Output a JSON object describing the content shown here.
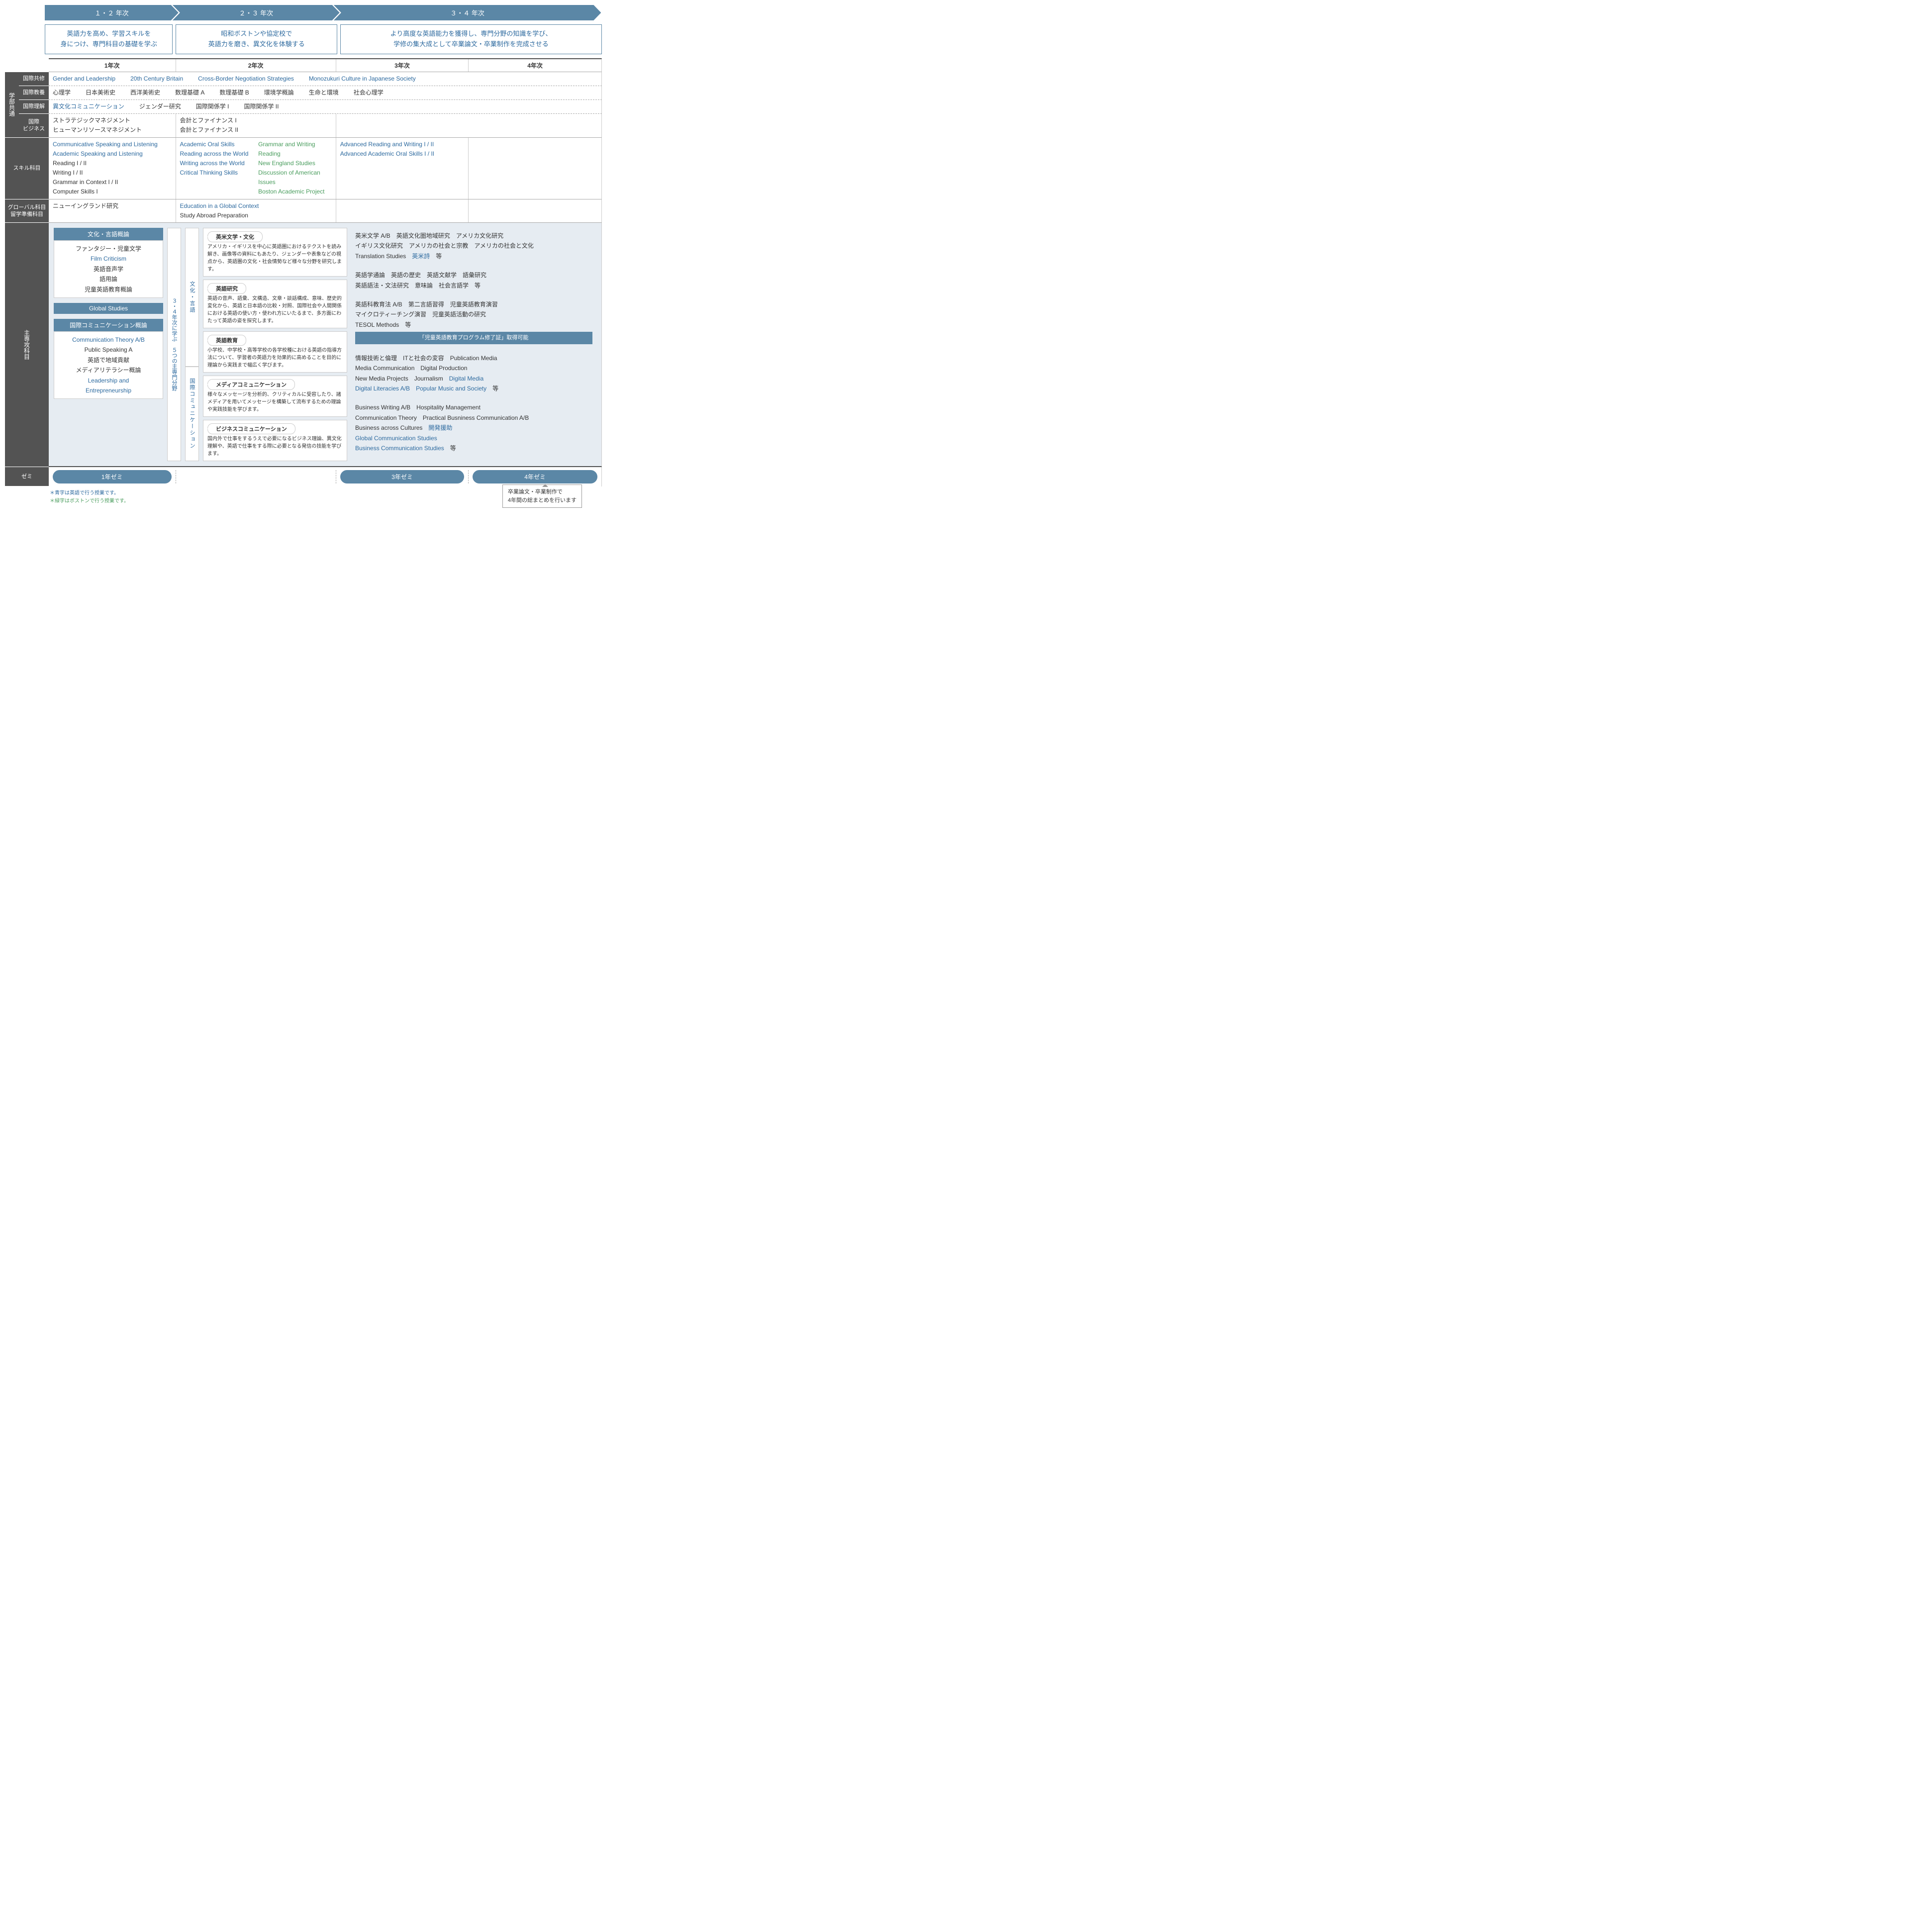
{
  "colors": {
    "header_bg": "#5b87a6",
    "side_bg": "#535353",
    "blue_text": "#2d6a9f",
    "green_text": "#4a9d5e",
    "panel_bg": "#e6ecf2"
  },
  "chevrons": [
    "１・２ 年次",
    "２・３ 年次",
    "３・４ 年次"
  ],
  "descriptions": [
    "英語力を高め、学習スキルを\n身につけ、専門科目の基礎を学ぶ",
    "昭和ボストンや協定校で\n英語力を磨き、異文化を体験する",
    "より高度な英語能力を獲得し、専門分野の知識を学び、\n学修の集大成として卒業論文・卒業制作を完成させる"
  ],
  "years": [
    "1年次",
    "2年次",
    "3年次",
    "4年次"
  ],
  "side_groups": {
    "gakubu": "学部共通",
    "skill": "スキル科目",
    "global": "グローバル科目\n留学準備科目",
    "major": "主専攻科目",
    "zemi": "ゼミ"
  },
  "sub_labels": {
    "kyoshu": "国際共修",
    "kyoyo": "国際教養",
    "rikai": "国際理解",
    "business": "国際\nビジネス"
  },
  "kyoshu_items": [
    "Gender and Leadership",
    "20th Century Britain",
    "Cross-Border Negotiation Strategies",
    "Monozukuri Culture in Japanese Society"
  ],
  "kyoyo_items": [
    "心理学",
    "日本美術史",
    "西洋美術史",
    "数理基礎 A",
    "数理基礎 B",
    "環境学概論",
    "生命と環境",
    "社会心理学"
  ],
  "rikai_items": {
    "blue": "異文化コミュニケーション",
    "rest": [
      "ジェンダー研究",
      "国際関係学 I",
      "国際関係学 II"
    ]
  },
  "business": {
    "y1": [
      "ストラテジックマネジメント",
      "ヒューマンリソースマネジメント"
    ],
    "y2": [
      "会計とファイナンス I",
      "会計とファイナンス II"
    ]
  },
  "skill": {
    "y1": [
      {
        "t": "Communicative Speaking and Listening",
        "c": "blue"
      },
      {
        "t": "Academic Speaking and Listening",
        "c": "blue"
      },
      {
        "t": "Reading I / II",
        "c": "black"
      },
      {
        "t": "Writing I / II",
        "c": "black"
      },
      {
        "t": "Grammar in Context I / II",
        "c": "black"
      },
      {
        "t": "Computer Skills I",
        "c": "black"
      }
    ],
    "y2a": [
      {
        "t": "Academic Oral Skills",
        "c": "blue"
      },
      {
        "t": "Reading across the World",
        "c": "blue"
      },
      {
        "t": "Writing across the World",
        "c": "blue"
      },
      {
        "t": "Critical Thinking Skills",
        "c": "blue"
      }
    ],
    "y2b": [
      {
        "t": "Grammar and Writing",
        "c": "green"
      },
      {
        "t": "Reading",
        "c": "green"
      },
      {
        "t": "New England Studies",
        "c": "green"
      },
      {
        "t": "Discussion of American Issues",
        "c": "green"
      },
      {
        "t": "Boston Academic Project",
        "c": "green"
      }
    ],
    "y3": [
      {
        "t": "Advanced Reading and Writing I / II",
        "c": "blue"
      },
      {
        "t": "Advanced Academic Oral Skills I / II",
        "c": "blue"
      }
    ]
  },
  "global": {
    "y1": "ニューイングランド研究",
    "y2": [
      {
        "t": "Education in a Global Context",
        "c": "blue"
      },
      {
        "t": "Study Abroad Preparation",
        "c": "black"
      }
    ]
  },
  "major_left": {
    "box1": {
      "title": "文化・言語概論",
      "items": [
        {
          "t": "ファンタジー・児童文学",
          "c": "black"
        },
        {
          "t": "Film Criticism",
          "c": "blue"
        },
        {
          "t": "英語音声学",
          "c": "black"
        },
        {
          "t": "語用論",
          "c": "black"
        },
        {
          "t": "児童英語教育概論",
          "c": "black"
        }
      ]
    },
    "box2": {
      "title": "Global Studies",
      "items": []
    },
    "box3": {
      "title": "国際コミュニケーション概論",
      "items": [
        {
          "t": "Communication Theory A/B",
          "c": "blue"
        },
        {
          "t": "Public Speaking A",
          "c": "black"
        },
        {
          "t": "英語で地域貢献",
          "c": "black"
        },
        {
          "t": "メディアリテラシー概論",
          "c": "black"
        },
        {
          "t": "Leadership and",
          "c": "blue"
        },
        {
          "t": "Entrepreneurship",
          "c": "blue"
        }
      ]
    }
  },
  "vert_outer": "３・４年次に学ぶ　５つの主専門分野",
  "vert_inner": {
    "top": "文化・言語",
    "bot": "国際コミュニケーション"
  },
  "fields": [
    {
      "title": "英米文学・文化",
      "desc": "アメリカ・イギリスを中心に英語圏におけるテクストを読み解き、画像等の資料にもあたり、ジェンダーや表象などの視点から、英語圏の文化・社会情勢など様々な分野を研究します。"
    },
    {
      "title": "英語研究",
      "desc": "英語の音声、語彙、文構造、文章・談話構成、意味、歴史的変化から、英語と日本語の比較・対照、国際社会や人間関係における英語の使い方・使われ方にいたるまで、多方面にわたって英語の姿を探究します。"
    },
    {
      "title": "英語教育",
      "desc": "小学校、中学校・高等学校の各学校種における英語の指導方法について、学習者の英語力を効果的に高めることを目的に理論から実践まで幅広く学びます。"
    },
    {
      "title": "メディアコミュニケーション",
      "desc": "様々なメッセージを分析的、クリティカルに受容したり、諸メディアを用いてメッセージを構築して流布するための理論や実践技能を学びます。"
    },
    {
      "title": "ビジネスコミュニケーション",
      "desc": "国内外で仕事をするうえで必要になるビジネス理論、異文化理解や、英語で仕事をする際に必要となる発信の技能を学びます。"
    }
  ],
  "courses": [
    {
      "lines": [
        [
          {
            "t": "英米文学 A/B",
            "c": "black"
          },
          {
            "t": "　英語文化圏地域研究",
            "c": "black"
          },
          {
            "t": "　アメリカ文化研究",
            "c": "black"
          }
        ],
        [
          {
            "t": "イギリス文化研究",
            "c": "black"
          },
          {
            "t": "　アメリカの社会と宗教",
            "c": "black"
          },
          {
            "t": "　アメリカの社会と文化",
            "c": "black"
          }
        ],
        [
          {
            "t": "Translation Studies",
            "c": "black"
          },
          {
            "t": "　英米詩",
            "c": "blue"
          },
          {
            "t": "　等",
            "c": "black"
          }
        ]
      ]
    },
    {
      "lines": [
        [
          {
            "t": "英語学通論",
            "c": "black"
          },
          {
            "t": "　英語の歴史",
            "c": "black"
          },
          {
            "t": "　英語文献学",
            "c": "black"
          },
          {
            "t": "　語彙研究",
            "c": "black"
          }
        ],
        [
          {
            "t": "英語語法・文法研究",
            "c": "black"
          },
          {
            "t": "　意味論",
            "c": "black"
          },
          {
            "t": "　社会言語学",
            "c": "black"
          },
          {
            "t": "　等",
            "c": "black"
          }
        ]
      ]
    },
    {
      "lines": [
        [
          {
            "t": "英語科教育法 A/B",
            "c": "black"
          },
          {
            "t": "　第二言語習得",
            "c": "black"
          },
          {
            "t": "　児童英語教育演習",
            "c": "black"
          }
        ],
        [
          {
            "t": "マイクロティーチング演習",
            "c": "black"
          },
          {
            "t": "　児童英語活動の研究",
            "c": "black"
          }
        ],
        [
          {
            "t": "TESOL Methods",
            "c": "black"
          },
          {
            "t": "　等",
            "c": "black"
          }
        ]
      ],
      "badge": "「児童英語教育プログラム修了証」取得可能"
    },
    {
      "lines": [
        [
          {
            "t": "情報技術と倫理",
            "c": "black"
          },
          {
            "t": "　ITと社会の変容",
            "c": "black"
          },
          {
            "t": "　Publication Media",
            "c": "black"
          }
        ],
        [
          {
            "t": "Media Communication",
            "c": "black"
          },
          {
            "t": "　Digital Production",
            "c": "black"
          }
        ],
        [
          {
            "t": "New Media Projects",
            "c": "black"
          },
          {
            "t": "　Journalism",
            "c": "black"
          },
          {
            "t": "　Digital Media",
            "c": "blue"
          }
        ],
        [
          {
            "t": "Digital Literacies A/B",
            "c": "blue"
          },
          {
            "t": "　Popular Music and Society",
            "c": "blue"
          },
          {
            "t": "　等",
            "c": "black"
          }
        ]
      ]
    },
    {
      "lines": [
        [
          {
            "t": "Business Writing A/B",
            "c": "black"
          },
          {
            "t": "　Hospitality Management",
            "c": "black"
          }
        ],
        [
          {
            "t": "Communication Theory",
            "c": "black"
          },
          {
            "t": "　Practical Busniness Communication A/B",
            "c": "black"
          }
        ],
        [
          {
            "t": "Business across Cultures",
            "c": "black"
          },
          {
            "t": "　開発援助",
            "c": "blue"
          }
        ],
        [
          {
            "t": "Global Communication Studies",
            "c": "blue"
          }
        ],
        [
          {
            "t": "Business Communication Studies",
            "c": "blue"
          },
          {
            "t": "　等",
            "c": "black"
          }
        ]
      ]
    }
  ],
  "zemi": [
    "1年ゼミ",
    "",
    "3年ゼミ",
    "4年ゼミ"
  ],
  "footnotes": [
    {
      "t": "＊青字は英語で行う授業です。",
      "c": "blue"
    },
    {
      "t": "＊緑字はボストンで行う授業です。",
      "c": "green"
    }
  ],
  "callout": "卒業論文・卒業制作で\n4年間の総まとめを行います"
}
